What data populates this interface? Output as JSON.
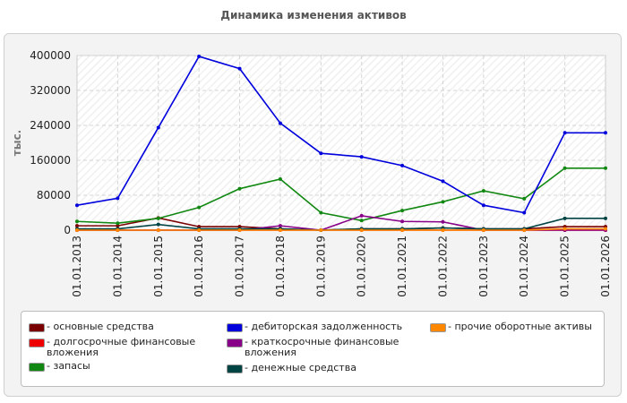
{
  "title": "Динамика изменения активов",
  "chart_data": {
    "type": "line",
    "title": "Динамика изменения активов",
    "ylabel": "тыс.",
    "xlabel": "",
    "ylim": [
      0,
      400000
    ],
    "yticks": [
      "400000",
      "320000",
      "240000",
      "160000",
      "80000",
      "0"
    ],
    "categories": [
      "01.01.2013",
      "01.01.2014",
      "01.01.2015",
      "01.01.2016",
      "01.01.2017",
      "01.01.2018",
      "01.01.2019",
      "01.01.2020",
      "01.01.2021",
      "01.01.2022",
      "01.01.2023",
      "01.01.2024",
      "01.01.2025",
      "01.01.2026"
    ],
    "grid": true,
    "legend_position": "bottom",
    "series": [
      {
        "name": "- основные средства",
        "color": "#7a0000",
        "values": [
          10000,
          10000,
          28000,
          8000,
          8000,
          3000,
          0,
          3000,
          3000,
          5000,
          3000,
          3000,
          8000,
          8000
        ]
      },
      {
        "name": "- долгосрочные финансовые вложения",
        "color": "#ee0000",
        "values": [
          0,
          0,
          0,
          0,
          0,
          0,
          0,
          0,
          0,
          0,
          0,
          0,
          0,
          0
        ]
      },
      {
        "name": "- запасы",
        "color": "#118811",
        "values": [
          20000,
          16000,
          27000,
          52000,
          95000,
          117000,
          40000,
          22000,
          45000,
          65000,
          90000,
          72000,
          142000,
          142000
        ]
      },
      {
        "name": "- дебиторская задолженность",
        "color": "#0000dd",
        "values": [
          57000,
          73000,
          235000,
          398000,
          370000,
          245000,
          176000,
          168000,
          148000,
          112000,
          57000,
          40000,
          223000,
          223000
        ]
      },
      {
        "name": "- краткосрочные финансовые вложения",
        "color": "#880088",
        "values": [
          0,
          0,
          0,
          0,
          0,
          10000,
          0,
          33000,
          20000,
          19000,
          0,
          0,
          0,
          0
        ]
      },
      {
        "name": "- денежные средства",
        "color": "#004444",
        "values": [
          3000,
          3000,
          13000,
          3000,
          3000,
          3000,
          0,
          3000,
          3000,
          5000,
          3000,
          3000,
          27000,
          27000
        ]
      },
      {
        "name": "- прочие оборотные активы",
        "color": "#ff8800",
        "values": [
          0,
          0,
          0,
          0,
          0,
          0,
          0,
          0,
          0,
          0,
          0,
          0,
          3000,
          3000
        ]
      }
    ]
  }
}
